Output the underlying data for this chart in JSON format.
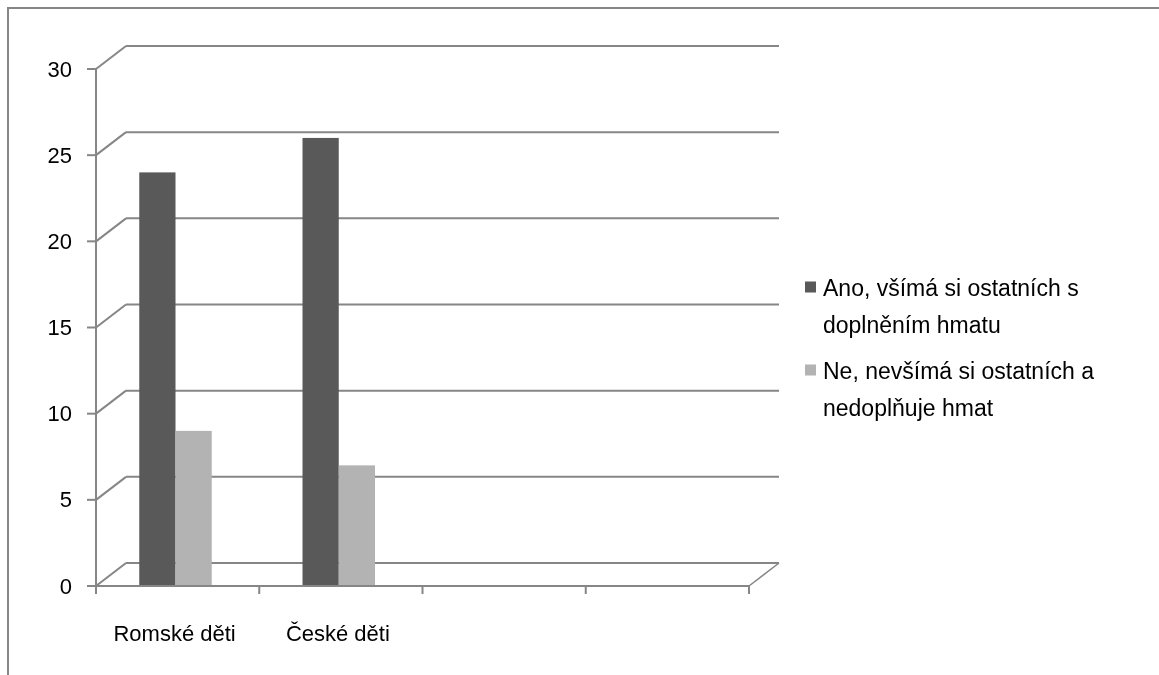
{
  "chart_data": {
    "type": "bar",
    "categories": [
      "Romské děti",
      "České děti",
      null,
      null
    ],
    "series": [
      {
        "name": "Ano, všímá si ostatních s doplněním hmatu",
        "color": "#595959",
        "values": [
          24,
          26,
          null,
          null
        ]
      },
      {
        "name": "Ne, nevšímá si ostatních a nedoplňuje hmat",
        "color": "#b3b3b3",
        "values": [
          9,
          7,
          null,
          null
        ]
      }
    ],
    "ylim": [
      0,
      30
    ],
    "yticks": [
      0,
      5,
      10,
      15,
      20,
      25,
      30
    ],
    "grid": "y",
    "legend": "right"
  }
}
